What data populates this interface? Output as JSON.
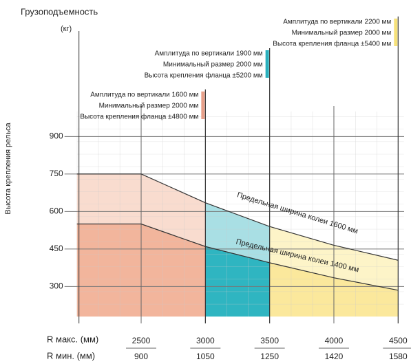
{
  "chart_data": {
    "type": "line",
    "title": "Грузоподъемность",
    "unit": "(кг)",
    "y_label": "Высота крепления рельса",
    "x_label": "R макс. (мм)",
    "x2_label": "R мин. (мм)",
    "x": [
      2000,
      2500,
      3000,
      3500,
      4000,
      4500
    ],
    "xlim": [
      2000,
      4500
    ],
    "xticks": [
      2500,
      3000,
      3500,
      4000,
      4500
    ],
    "x2_values": [
      900,
      1050,
      1250,
      1420,
      1580
    ],
    "ylim": [
      180,
      1000
    ],
    "yticks": [
      300,
      450,
      600,
      750,
      900
    ],
    "grid": true,
    "series": [
      {
        "name": "Предельная ширина колеи 1600 мм",
        "color": "#333333",
        "values": [
          750,
          750,
          635,
          540,
          465,
          405
        ]
      },
      {
        "name": "Предельная ширина колеи 1400 мм",
        "color": "#333333",
        "values": [
          550,
          550,
          460,
          395,
          335,
          285
        ]
      }
    ],
    "annotations": [
      {
        "x": 3000,
        "color": "#e8a08a",
        "fill_light": "#f9dccf",
        "fill_dark": "#f2b59c",
        "lines": [
          "Амплитуда по вертикали 1600 мм",
          "Минимальный размер 2000 мм",
          "Высота крепления фланца ±4800 мм"
        ]
      },
      {
        "x": 3500,
        "color": "#2ab0bd",
        "fill_light": "#a9dfe4",
        "fill_dark": "#2fb5c1",
        "lines": [
          "Амплитуда по вертикали 1900 мм",
          "Минимальный размер 2000 мм",
          "Высота крепления фланца ±5200 мм"
        ]
      },
      {
        "x": 4500,
        "color": "#f7e27a",
        "fill_light": "#fdf4c8",
        "fill_dark": "#fbe89c",
        "lines": [
          "Амплитуда по вертикали 2200 мм",
          "Минимальный размер 2000 мм",
          "Высота крепления фланца ±5400 мм"
        ]
      }
    ]
  }
}
